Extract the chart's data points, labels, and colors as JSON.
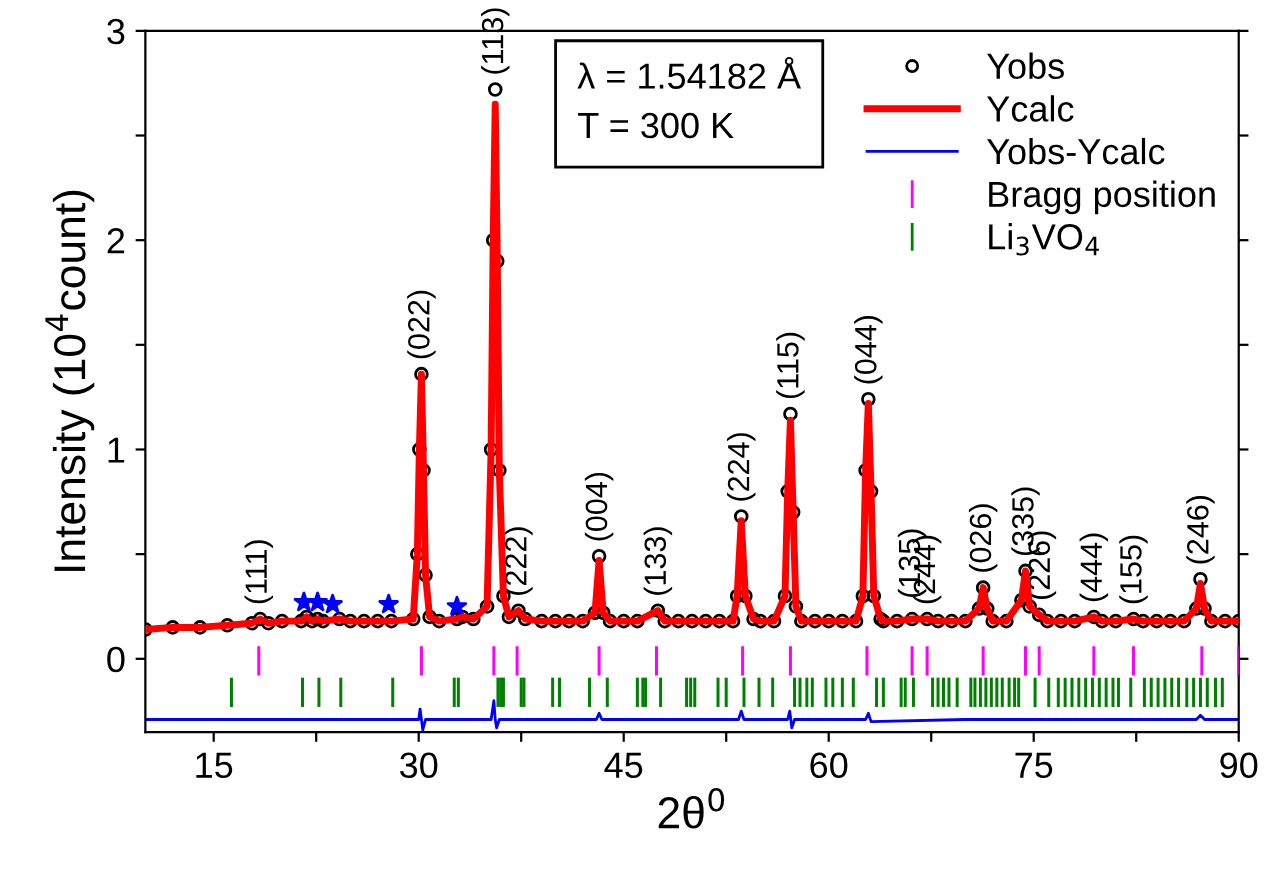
{
  "chart_data": {
    "type": "scatter",
    "xlabel": "2θ$^{0}$",
    "ylabel": "Intensity (10$^{4}$count)",
    "xlim": [
      10,
      90
    ],
    "ylim": [
      -0.35,
      3
    ],
    "xticks": [
      15,
      {
        "value": 22.5,
        "label": null
      },
      30,
      {
        "value": 37.5,
        "label": null
      },
      45,
      {
        "value": 52.5,
        "label": null
      },
      60,
      {
        "value": 67.5,
        "label": null
      },
      75,
      {
        "value": 82.5,
        "label": null
      },
      90
    ],
    "yticks": [
      0,
      {
        "value": 0.5,
        "label": null
      },
      1,
      {
        "value": 1.5,
        "label": null
      },
      2,
      {
        "value": 2.5,
        "label": null
      },
      3
    ],
    "grid": false,
    "legend": "top right",
    "series": [
      {
        "name": "Yobs",
        "marker": "circle",
        "color": "#000000",
        "x": [
          10,
          12,
          14,
          16,
          17.8,
          18.4,
          19,
          20,
          21.4,
          21.8,
          22.2,
          22.6,
          23,
          24.2,
          25,
          26,
          27,
          28,
          29.6,
          29.9,
          30.05,
          30.2,
          30.35,
          30.5,
          30.8,
          31.5,
          32.8,
          33.2,
          34,
          35,
          35.3,
          35.45,
          35.6,
          35.75,
          35.9,
          36.2,
          36.6,
          37.3,
          37.8,
          39,
          40,
          41,
          42,
          42.9,
          43.2,
          43.5,
          44,
          45,
          46,
          47.5,
          48,
          49,
          50,
          51,
          52,
          53,
          53.3,
          53.6,
          53.9,
          54.5,
          55,
          56,
          56.8,
          57,
          57.2,
          57.4,
          57.6,
          58,
          59,
          60,
          61,
          62,
          62.5,
          62.7,
          62.9,
          63.1,
          63.3,
          63.8,
          64,
          65,
          66.1,
          67.2,
          68,
          69,
          70,
          71,
          71.3,
          71.6,
          72,
          73,
          74.1,
          74.4,
          74.7,
          75.4,
          76,
          77,
          78,
          79.4,
          80,
          81,
          82.3,
          83,
          84,
          85,
          86,
          86.9,
          87.2,
          87.5,
          88,
          89,
          90
        ],
        "values": [
          0.14,
          0.15,
          0.15,
          0.16,
          0.17,
          0.19,
          0.17,
          0.18,
          0.18,
          0.2,
          0.18,
          0.19,
          0.18,
          0.19,
          0.18,
          0.18,
          0.18,
          0.18,
          0.19,
          0.5,
          1.0,
          1.36,
          0.9,
          0.4,
          0.2,
          0.18,
          0.19,
          0.2,
          0.19,
          0.25,
          1.0,
          2.0,
          2.72,
          1.9,
          0.9,
          0.3,
          0.2,
          0.23,
          0.19,
          0.18,
          0.18,
          0.18,
          0.18,
          0.22,
          0.49,
          0.22,
          0.18,
          0.18,
          0.18,
          0.23,
          0.18,
          0.18,
          0.18,
          0.18,
          0.18,
          0.18,
          0.3,
          0.68,
          0.3,
          0.19,
          0.18,
          0.18,
          0.3,
          0.8,
          1.17,
          0.7,
          0.25,
          0.18,
          0.18,
          0.18,
          0.18,
          0.18,
          0.3,
          0.9,
          1.24,
          0.8,
          0.3,
          0.19,
          0.18,
          0.18,
          0.19,
          0.19,
          0.18,
          0.18,
          0.18,
          0.24,
          0.34,
          0.24,
          0.18,
          0.18,
          0.28,
          0.42,
          0.25,
          0.21,
          0.18,
          0.18,
          0.18,
          0.2,
          0.18,
          0.18,
          0.19,
          0.18,
          0.18,
          0.18,
          0.18,
          0.24,
          0.38,
          0.24,
          0.18,
          0.18,
          0.18
        ]
      },
      {
        "name": "Ycalc",
        "type": "line",
        "color": "#ff0000",
        "x": [
          10,
          12,
          14,
          16,
          17.8,
          18.4,
          19,
          20,
          21.4,
          21.8,
          22.2,
          22.6,
          23,
          24.2,
          25,
          26,
          27,
          28,
          29.6,
          29.9,
          30.05,
          30.2,
          30.35,
          30.5,
          30.8,
          31.5,
          32.8,
          33.2,
          34,
          35,
          35.3,
          35.45,
          35.6,
          35.75,
          35.9,
          36.2,
          36.6,
          37.3,
          37.8,
          39,
          40,
          41,
          42,
          42.9,
          43.2,
          43.5,
          44,
          45,
          46,
          47.5,
          48,
          49,
          50,
          51,
          52,
          53,
          53.3,
          53.6,
          53.9,
          54.5,
          55,
          56,
          56.8,
          57,
          57.2,
          57.4,
          57.6,
          58,
          59,
          60,
          61,
          62,
          62.5,
          62.7,
          62.9,
          63.1,
          63.3,
          63.8,
          64,
          65,
          66.1,
          67.2,
          68,
          69,
          70,
          71,
          71.3,
          71.6,
          72,
          73,
          74.1,
          74.4,
          74.7,
          75.4,
          76,
          77,
          78,
          79.4,
          80,
          81,
          82.3,
          83,
          84,
          85,
          86,
          86.9,
          87.2,
          87.5,
          88,
          89,
          90
        ],
        "values": [
          0.14,
          0.15,
          0.15,
          0.16,
          0.17,
          0.19,
          0.17,
          0.18,
          0.18,
          0.2,
          0.18,
          0.19,
          0.18,
          0.19,
          0.18,
          0.18,
          0.18,
          0.18,
          0.19,
          0.5,
          1.0,
          1.36,
          0.9,
          0.4,
          0.2,
          0.18,
          0.19,
          0.2,
          0.19,
          0.25,
          1.0,
          2.0,
          2.65,
          1.9,
          0.9,
          0.3,
          0.2,
          0.23,
          0.19,
          0.18,
          0.18,
          0.18,
          0.18,
          0.22,
          0.47,
          0.22,
          0.18,
          0.18,
          0.18,
          0.23,
          0.18,
          0.18,
          0.18,
          0.18,
          0.18,
          0.18,
          0.3,
          0.66,
          0.3,
          0.19,
          0.18,
          0.18,
          0.3,
          0.8,
          1.14,
          0.7,
          0.25,
          0.18,
          0.18,
          0.18,
          0.18,
          0.18,
          0.3,
          0.9,
          1.22,
          0.8,
          0.3,
          0.19,
          0.18,
          0.18,
          0.19,
          0.19,
          0.18,
          0.18,
          0.18,
          0.24,
          0.34,
          0.24,
          0.18,
          0.18,
          0.28,
          0.42,
          0.25,
          0.21,
          0.18,
          0.18,
          0.18,
          0.2,
          0.18,
          0.18,
          0.19,
          0.18,
          0.18,
          0.18,
          0.18,
          0.24,
          0.36,
          0.24,
          0.18,
          0.18,
          0.18
        ]
      },
      {
        "name": "Yobs-Ycalc",
        "type": "line",
        "color": "#0000ff",
        "x": [
          10,
          20,
          30,
          30.1,
          30.2,
          30.3,
          30.5,
          35.3,
          35.5,
          35.6,
          35.7,
          35.9,
          43,
          43.2,
          43.4,
          53.4,
          53.6,
          53.8,
          57,
          57.15,
          57.3,
          57.5,
          62.7,
          62.9,
          63.1,
          70,
          80,
          86.9,
          87.2,
          87.5,
          90
        ],
        "values": [
          -0.29,
          -0.29,
          -0.29,
          -0.24,
          -0.29,
          -0.34,
          -0.29,
          -0.29,
          -0.2,
          -0.29,
          -0.33,
          -0.29,
          -0.29,
          -0.26,
          -0.29,
          -0.29,
          -0.25,
          -0.29,
          -0.29,
          -0.25,
          -0.33,
          -0.29,
          -0.29,
          -0.26,
          -0.3,
          -0.29,
          -0.29,
          -0.29,
          -0.27,
          -0.29,
          -0.29
        ]
      },
      {
        "name": "Bragg position",
        "type": "bar",
        "color": "#ff00ff",
        "x": [
          18.3,
          30.2,
          35.5,
          37.2,
          43.2,
          47.4,
          53.7,
          57.2,
          62.8,
          66.1,
          67.2,
          71.3,
          74.4,
          75.4,
          79.4,
          82.3,
          87.3,
          90
        ],
        "values": [
          0.14,
          0.14,
          0.14,
          0.14,
          0.14,
          0.14,
          0.14,
          0.14,
          0.14,
          0.14,
          0.14,
          0.14,
          0.14,
          0.14,
          0.14,
          0.14,
          0.14,
          0.14
        ],
        "base": [
          -0.08,
          -0.08,
          -0.08,
          -0.08,
          -0.08,
          -0.08,
          -0.08,
          -0.08,
          -0.08,
          -0.08,
          -0.08,
          -0.08,
          -0.08,
          -0.08,
          -0.08,
          -0.08,
          -0.08,
          -0.08
        ]
      },
      {
        "name": "Li$_{3}$VO$_{4}$",
        "type": "bar",
        "color": "#008000",
        "x": [
          16.3,
          21.5,
          22.7,
          24.3,
          28.1,
          32.6,
          32.9,
          35.8,
          36.0,
          36.2,
          37.5,
          37.7,
          39.8,
          40.3,
          42.5,
          43.8,
          46.0,
          46.4,
          46.6,
          47.7,
          49.6,
          49.9,
          50.2,
          51.9,
          52.5,
          53.8,
          54.9,
          55.9,
          57.5,
          57.9,
          58.4,
          58.8,
          59.8,
          60.3,
          61.0,
          61.8,
          63.5,
          64.0,
          65.3,
          65.6,
          66.2,
          67.6,
          68.0,
          68.4,
          68.8,
          69.4,
          70.4,
          70.7,
          71.1,
          71.5,
          71.9,
          72.3,
          72.7,
          73.2,
          73.6,
          73.9,
          75.1,
          76.1,
          76.8,
          77.3,
          77.8,
          78.3,
          78.8,
          79.3,
          79.8,
          80.3,
          80.8,
          81.2,
          82.1,
          83.1,
          83.6,
          84.1,
          84.6,
          85.1,
          85.6,
          86.2,
          86.7,
          87.2,
          87.7,
          88.3,
          88.8
        ],
        "values": [
          0.14,
          0.14,
          0.14,
          0.14,
          0.14,
          0.14,
          0.14,
          0.14,
          0.14,
          0.14,
          0.14,
          0.14,
          0.14,
          0.14,
          0.14,
          0.14,
          0.14,
          0.14,
          0.14,
          0.14,
          0.14,
          0.14,
          0.14,
          0.14,
          0.14,
          0.14,
          0.14,
          0.14,
          0.14,
          0.14,
          0.14,
          0.14,
          0.14,
          0.14,
          0.14,
          0.14,
          0.14,
          0.14,
          0.14,
          0.14,
          0.14,
          0.14,
          0.14,
          0.14,
          0.14,
          0.14,
          0.14,
          0.14,
          0.14,
          0.14,
          0.14,
          0.14,
          0.14,
          0.14,
          0.14,
          0.14,
          0.14,
          0.14,
          0.14,
          0.14,
          0.14,
          0.14,
          0.14,
          0.14,
          0.14,
          0.14,
          0.14,
          0.14,
          0.14,
          0.14,
          0.14,
          0.14,
          0.14,
          0.14,
          0.14,
          0.14,
          0.14,
          0.14,
          0.14,
          0.14,
          0.14
        ],
        "base": [
          -0.23,
          -0.23,
          -0.23,
          -0.23,
          -0.23,
          -0.23,
          -0.23,
          -0.23,
          -0.23,
          -0.23,
          -0.23,
          -0.23,
          -0.23,
          -0.23,
          -0.23,
          -0.23,
          -0.23,
          -0.23,
          -0.23,
          -0.23,
          -0.23,
          -0.23,
          -0.23,
          -0.23,
          -0.23,
          -0.23,
          -0.23,
          -0.23,
          -0.23,
          -0.23,
          -0.23,
          -0.23,
          -0.23,
          -0.23,
          -0.23,
          -0.23,
          -0.23,
          -0.23,
          -0.23,
          -0.23,
          -0.23,
          -0.23,
          -0.23,
          -0.23,
          -0.23,
          -0.23,
          -0.23,
          -0.23,
          -0.23,
          -0.23,
          -0.23,
          -0.23,
          -0.23,
          -0.23,
          -0.23,
          -0.23,
          -0.23,
          -0.23,
          -0.23,
          -0.23,
          -0.23,
          -0.23,
          -0.23,
          -0.23,
          -0.23,
          -0.23,
          -0.23,
          -0.23,
          -0.23,
          -0.23,
          -0.23,
          -0.23,
          -0.23,
          -0.23,
          -0.23,
          -0.23,
          -0.23,
          -0.23,
          -0.23,
          -0.23,
          -0.23
        ]
      },
      {
        "type": "scatter",
        "marker": "star",
        "color": "#0000ff",
        "x": [
          21.6,
          22.6,
          23.7,
          27.8,
          32.8
        ],
        "values": [
          0.27,
          0.27,
          0.26,
          0.26,
          0.25
        ]
      }
    ],
    "annotations": [
      "λ = 1.54182 Å",
      "T = 300 K",
      {
        "text": "(111)",
        "x": 18.3,
        "y": 0.19
      },
      {
        "text": "(022)",
        "x": 30.2,
        "y": 1.36
      },
      {
        "text": "(113)",
        "x": 35.6,
        "y": 2.72
      },
      {
        "text": "(222)",
        "x": 37.3,
        "y": 0.23
      },
      {
        "text": "(004)",
        "x": 43.2,
        "y": 0.49
      },
      {
        "text": "(133)",
        "x": 47.5,
        "y": 0.23
      },
      {
        "text": "(224)",
        "x": 53.6,
        "y": 0.68
      },
      {
        "text": "(115)",
        "x": 57.2,
        "y": 1.17
      },
      {
        "text": "(044)",
        "x": 62.9,
        "y": 1.24
      },
      {
        "text": "(135)",
        "x": 66.1,
        "y": 0.22
      },
      {
        "text": "(244)",
        "x": 67.2,
        "y": 0.19
      },
      {
        "text": "(026)",
        "x": 71.3,
        "y": 0.34
      },
      {
        "text": "(335)",
        "x": 74.4,
        "y": 0.42
      },
      {
        "text": "(226)",
        "x": 75.6,
        "y": 0.21
      },
      {
        "text": "(444)",
        "x": 79.4,
        "y": 0.2
      },
      {
        "text": "(155)",
        "x": 82.3,
        "y": 0.19
      },
      {
        "text": "(246)",
        "x": 87.2,
        "y": 0.38
      }
    ]
  }
}
